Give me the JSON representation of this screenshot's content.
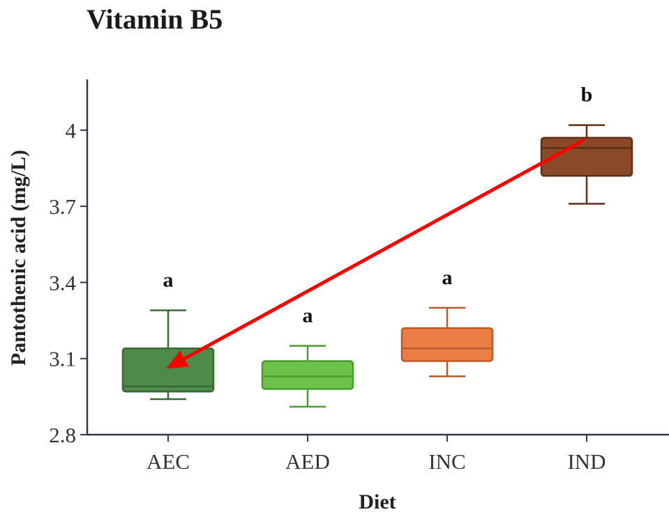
{
  "chart_data": {
    "type": "box",
    "title": "Vitamin B5",
    "xlabel": "Diet",
    "ylabel": "Pantothenic acid (mg/L)",
    "ylim": [
      2.8,
      4.2
    ],
    "yticks": [
      2.8,
      3.1,
      3.4,
      3.7,
      4
    ],
    "ytick_labels": [
      "2.8",
      "3.1",
      "3.4",
      "3.7",
      "4"
    ],
    "categories": [
      "AEC",
      "AED",
      "INC",
      "IND"
    ],
    "boxes": [
      {
        "category": "AEC",
        "min": 2.94,
        "q1": 2.97,
        "median": 2.99,
        "q3": 3.14,
        "max": 3.29,
        "letter": "a",
        "fill": "#4e8a4a",
        "stroke": "#356b32"
      },
      {
        "category": "AED",
        "min": 2.91,
        "q1": 2.98,
        "median": 3.03,
        "q3": 3.09,
        "max": 3.15,
        "letter": "a",
        "fill": "#6cc24a",
        "stroke": "#4a9a30"
      },
      {
        "category": "INC",
        "min": 3.03,
        "q1": 3.09,
        "median": 3.14,
        "q3": 3.22,
        "max": 3.3,
        "letter": "a",
        "fill": "#ec7d44",
        "stroke": "#b85a2a"
      },
      {
        "category": "IND",
        "min": 3.71,
        "q1": 3.82,
        "median": 3.93,
        "q3": 3.97,
        "max": 4.02,
        "letter": "b",
        "fill": "#8a4a2a",
        "stroke": "#5e2e16"
      }
    ],
    "annotation": {
      "type": "arrow",
      "color": "#ff0000",
      "from": {
        "category": "IND",
        "value": 3.96
      },
      "to": {
        "category": "AEC",
        "value": 3.06
      }
    },
    "grid": false,
    "legend": "none"
  }
}
